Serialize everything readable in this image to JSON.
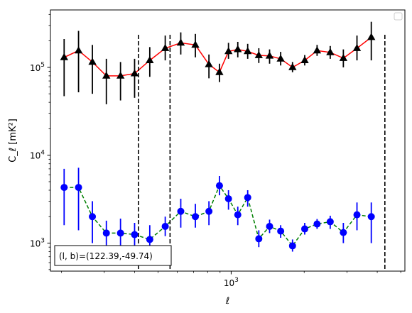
{
  "chart_data": {
    "type": "scatter",
    "title": "",
    "xlabel": "ℓ",
    "ylabel": "C_ℓ  [mK²]",
    "xscale": "log",
    "yscale": "log",
    "xlim": [
      180,
      5200
    ],
    "ylim": [
      480,
      450000
    ],
    "grid": false,
    "legend": {
      "placement": "top-right",
      "entries": []
    },
    "x_ticks": [
      {
        "value": 1000,
        "base": "10",
        "exp": "3"
      }
    ],
    "y_ticks": [
      {
        "value": 1000,
        "base": "10",
        "exp": "3"
      },
      {
        "value": 10000,
        "base": "10",
        "exp": "4"
      },
      {
        "value": 100000,
        "base": "10",
        "exp": "5"
      }
    ],
    "vlines": [
      415,
      560,
      4300
    ],
    "annotation": "(l, b)=(122.39,-49.74)",
    "series": [
      {
        "color": "#000000",
        "line_color": "#ff0000",
        "line_style": "solid",
        "marker": "triangle",
        "points": [
          {
            "x": 205,
            "y": 130000,
            "lo": 47000,
            "hi": 210000
          },
          {
            "x": 235,
            "y": 155000,
            "lo": 52000,
            "hi": 260000
          },
          {
            "x": 268,
            "y": 115000,
            "lo": 50000,
            "hi": 180000
          },
          {
            "x": 306,
            "y": 80000,
            "lo": 38000,
            "hi": 125000
          },
          {
            "x": 350,
            "y": 80000,
            "lo": 42000,
            "hi": 115000
          },
          {
            "x": 400,
            "y": 85000,
            "lo": 45000,
            "hi": 125000
          },
          {
            "x": 462,
            "y": 120000,
            "lo": 78000,
            "hi": 170000
          },
          {
            "x": 535,
            "y": 165000,
            "lo": 120000,
            "hi": 230000
          },
          {
            "x": 620,
            "y": 190000,
            "lo": 140000,
            "hi": 250000
          },
          {
            "x": 712,
            "y": 180000,
            "lo": 130000,
            "hi": 240000
          },
          {
            "x": 810,
            "y": 108000,
            "lo": 75000,
            "hi": 140000
          },
          {
            "x": 895,
            "y": 88000,
            "lo": 68000,
            "hi": 110000
          },
          {
            "x": 975,
            "y": 152000,
            "lo": 125000,
            "hi": 190000
          },
          {
            "x": 1065,
            "y": 160000,
            "lo": 130000,
            "hi": 195000
          },
          {
            "x": 1170,
            "y": 152000,
            "lo": 125000,
            "hi": 185000
          },
          {
            "x": 1300,
            "y": 137000,
            "lo": 112000,
            "hi": 165000
          },
          {
            "x": 1440,
            "y": 135000,
            "lo": 110000,
            "hi": 160000
          },
          {
            "x": 1600,
            "y": 125000,
            "lo": 105000,
            "hi": 150000
          },
          {
            "x": 1790,
            "y": 100000,
            "lo": 88000,
            "hi": 115000
          },
          {
            "x": 2010,
            "y": 120000,
            "lo": 105000,
            "hi": 138000
          },
          {
            "x": 2260,
            "y": 155000,
            "lo": 135000,
            "hi": 180000
          },
          {
            "x": 2560,
            "y": 148000,
            "lo": 125000,
            "hi": 175000
          },
          {
            "x": 2900,
            "y": 127000,
            "lo": 100000,
            "hi": 160000
          },
          {
            "x": 3300,
            "y": 165000,
            "lo": 120000,
            "hi": 230000
          },
          {
            "x": 3780,
            "y": 220000,
            "lo": 120000,
            "hi": 330000
          }
        ]
      },
      {
        "color": "#0000ff",
        "line_color": "#008000",
        "line_style": "dashed",
        "marker": "circle",
        "points": [
          {
            "x": 205,
            "y": 4300,
            "lo": 1600,
            "hi": 7000
          },
          {
            "x": 235,
            "y": 4300,
            "lo": 1400,
            "hi": 7200
          },
          {
            "x": 268,
            "y": 2000,
            "lo": 1000,
            "hi": 3000
          },
          {
            "x": 306,
            "y": 1300,
            "lo": 800,
            "hi": 1800
          },
          {
            "x": 350,
            "y": 1300,
            "lo": 830,
            "hi": 1900
          },
          {
            "x": 400,
            "y": 1250,
            "lo": 900,
            "hi": 1700
          },
          {
            "x": 462,
            "y": 1100,
            "lo": 800,
            "hi": 1600
          },
          {
            "x": 535,
            "y": 1550,
            "lo": 1200,
            "hi": 2000
          },
          {
            "x": 620,
            "y": 2300,
            "lo": 1500,
            "hi": 3200
          },
          {
            "x": 712,
            "y": 2000,
            "lo": 1500,
            "hi": 2800
          },
          {
            "x": 810,
            "y": 2300,
            "lo": 1600,
            "hi": 3000
          },
          {
            "x": 895,
            "y": 4500,
            "lo": 3500,
            "hi": 5800
          },
          {
            "x": 975,
            "y": 3200,
            "lo": 2400,
            "hi": 4000
          },
          {
            "x": 1065,
            "y": 2100,
            "lo": 1600,
            "hi": 2600
          },
          {
            "x": 1170,
            "y": 3300,
            "lo": 2600,
            "hi": 4000
          },
          {
            "x": 1300,
            "y": 1120,
            "lo": 900,
            "hi": 1400
          },
          {
            "x": 1440,
            "y": 1550,
            "lo": 1300,
            "hi": 1850
          },
          {
            "x": 1600,
            "y": 1370,
            "lo": 1150,
            "hi": 1600
          },
          {
            "x": 1790,
            "y": 930,
            "lo": 800,
            "hi": 1100
          },
          {
            "x": 2010,
            "y": 1450,
            "lo": 1250,
            "hi": 1700
          },
          {
            "x": 2260,
            "y": 1650,
            "lo": 1450,
            "hi": 1880
          },
          {
            "x": 2560,
            "y": 1750,
            "lo": 1450,
            "hi": 2050
          },
          {
            "x": 2900,
            "y": 1320,
            "lo": 1000,
            "hi": 1700
          },
          {
            "x": 3300,
            "y": 2100,
            "lo": 1400,
            "hi": 2900
          },
          {
            "x": 3780,
            "y": 2000,
            "lo": 1000,
            "hi": 2900
          }
        ]
      }
    ]
  }
}
